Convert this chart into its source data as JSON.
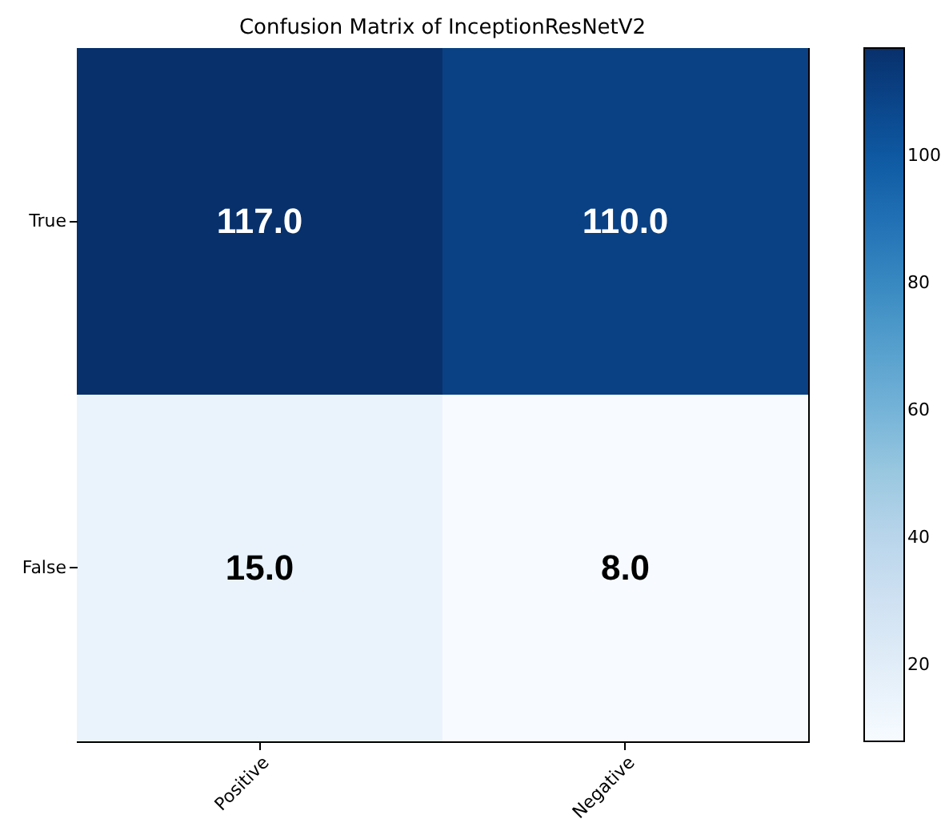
{
  "chart_data": {
    "type": "heatmap",
    "title": "Confusion Matrix of InceptionResNetV2",
    "categories": [
      "Positive",
      "Negative"
    ],
    "y_categories": [
      "True",
      "False"
    ],
    "cells": [
      [
        117,
        110
      ],
      [
        15,
        8
      ]
    ],
    "cell_labels": [
      [
        "117.0",
        "110.0"
      ],
      [
        "15.0",
        "8.0"
      ]
    ],
    "clim": [
      8,
      117
    ],
    "cticks": [
      20,
      40,
      60,
      80,
      100
    ]
  }
}
